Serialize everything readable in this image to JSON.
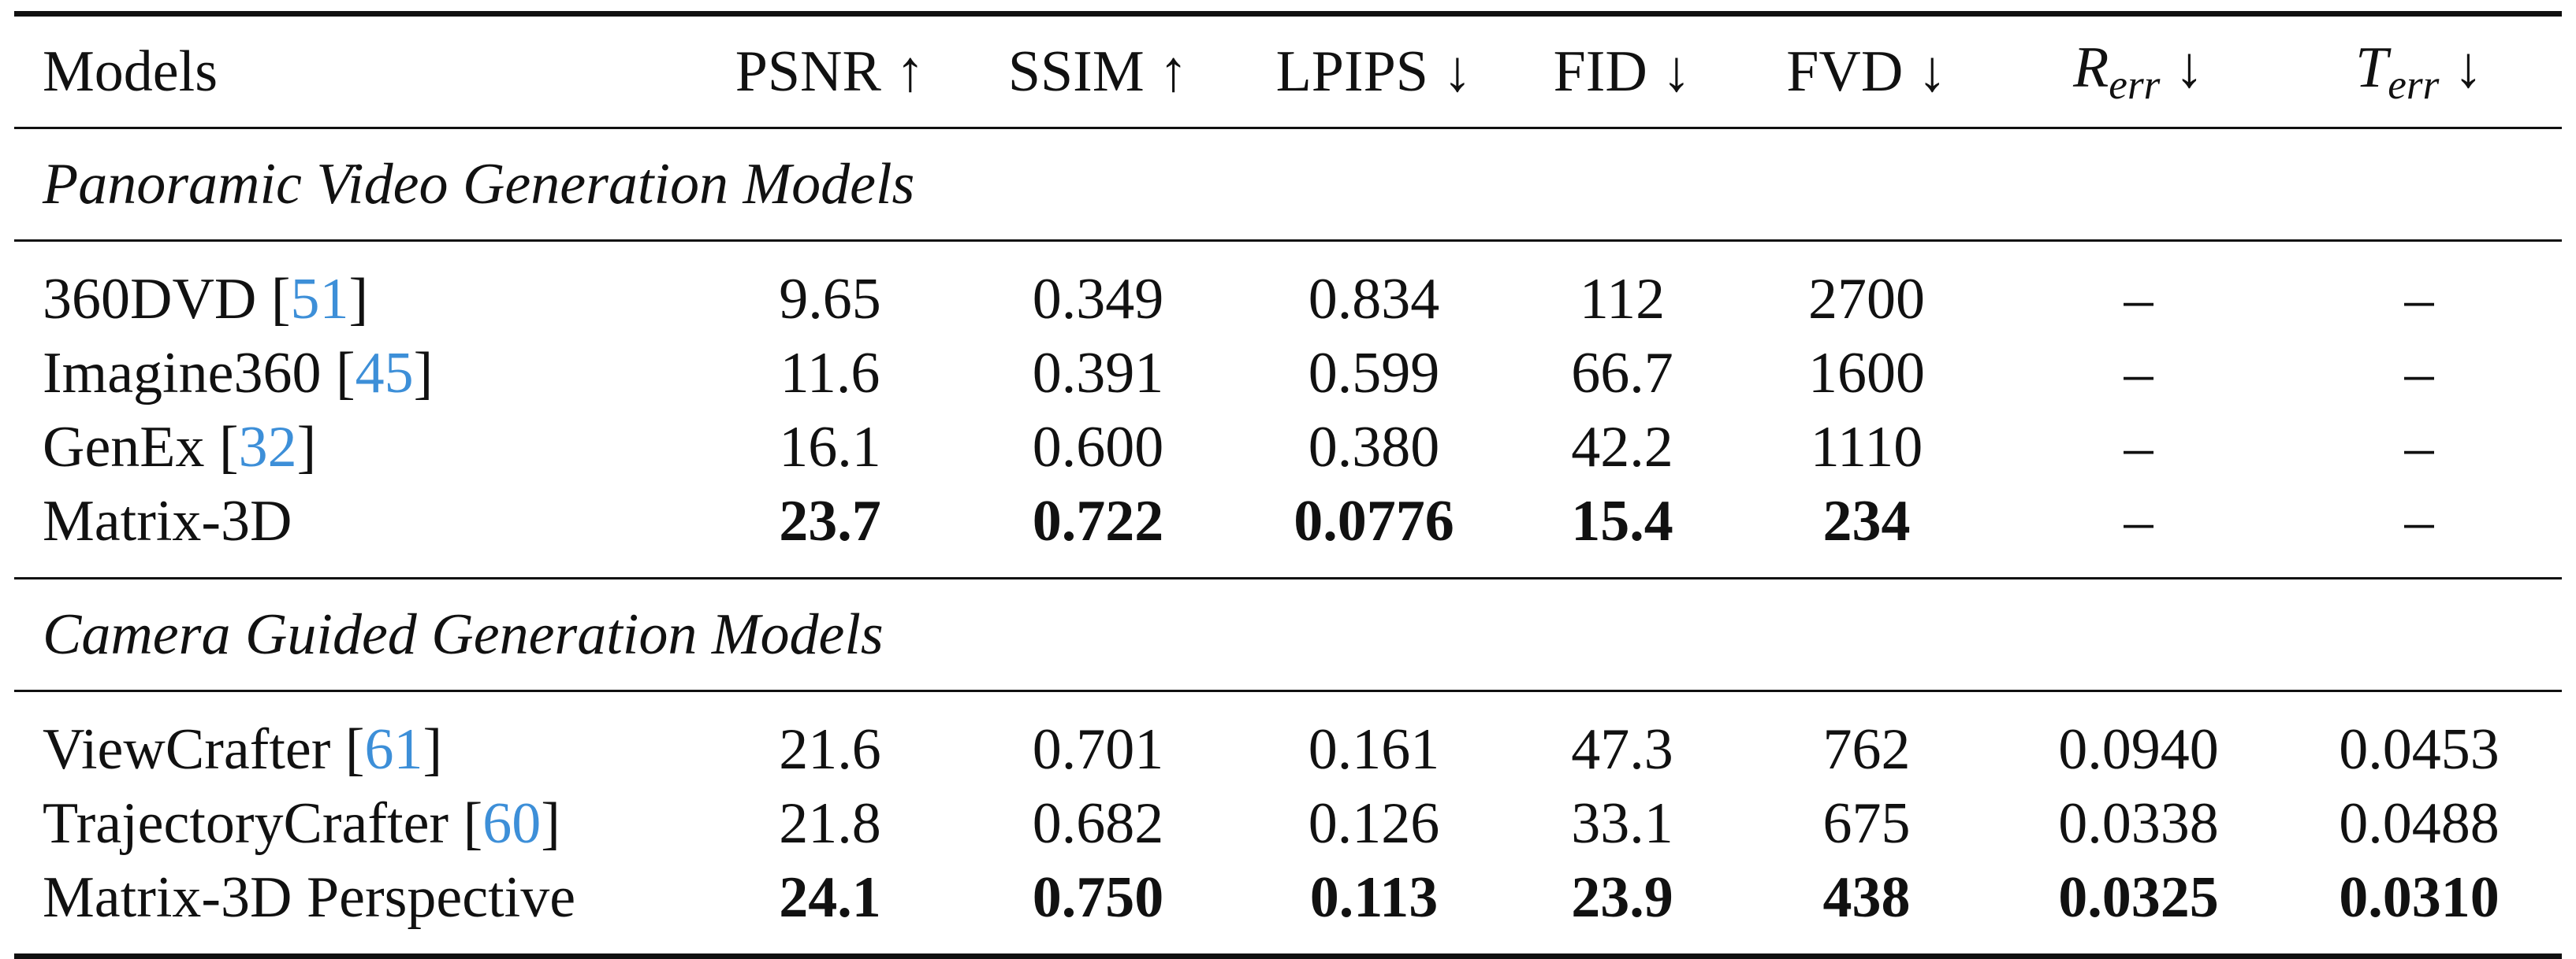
{
  "table": {
    "headers": {
      "models": "Models",
      "psnr": "PSNR ↑",
      "ssim": "SSIM ↑",
      "lpips": "LPIPS ↓",
      "fid": "FID ↓",
      "fvd": "FVD ↓",
      "rerr_base": "R",
      "rerr_sub": "err",
      "rerr_arrow": "↓",
      "terr_base": "T",
      "terr_sub": "err",
      "terr_arrow": "↓"
    },
    "groups": [
      {
        "label": "Panoramic Video Generation Models",
        "rows": [
          {
            "model": "360DVD",
            "cite": "51",
            "psnr": "9.65",
            "ssim": "0.349",
            "lpips": "0.834",
            "fid": "112",
            "fvd": "2700",
            "rerr": "–",
            "terr": "–"
          },
          {
            "model": "Imagine360",
            "cite": "45",
            "psnr": "11.6",
            "ssim": "0.391",
            "lpips": "0.599",
            "fid": "66.7",
            "fvd": "1600",
            "rerr": "–",
            "terr": "–"
          },
          {
            "model": "GenEx",
            "cite": "32",
            "psnr": "16.1",
            "ssim": "0.600",
            "lpips": "0.380",
            "fid": "42.2",
            "fvd": "1110",
            "rerr": "–",
            "terr": "–"
          },
          {
            "model": "Matrix-3D",
            "cite": "",
            "psnr": "23.7",
            "ssim": "0.722",
            "lpips": "0.0776",
            "fid": "15.4",
            "fvd": "234",
            "rerr": "–",
            "terr": "–"
          }
        ]
      },
      {
        "label": "Camera Guided Generation Models",
        "rows": [
          {
            "model": "ViewCrafter",
            "cite": "61",
            "psnr": "21.6",
            "ssim": "0.701",
            "lpips": "0.161",
            "fid": "47.3",
            "fvd": "762",
            "rerr": "0.0940",
            "terr": "0.0453"
          },
          {
            "model": "TrajectoryCrafter",
            "cite": "60",
            "psnr": "21.8",
            "ssim": "0.682",
            "lpips": "0.126",
            "fid": "33.1",
            "fvd": "675",
            "rerr": "0.0338",
            "terr": "0.0488"
          },
          {
            "model": "Matrix-3D Perspective",
            "cite": "",
            "psnr": "24.1",
            "ssim": "0.750",
            "lpips": "0.113",
            "fid": "23.9",
            "fvd": "438",
            "rerr": "0.0325",
            "terr": "0.0310"
          }
        ]
      }
    ]
  }
}
